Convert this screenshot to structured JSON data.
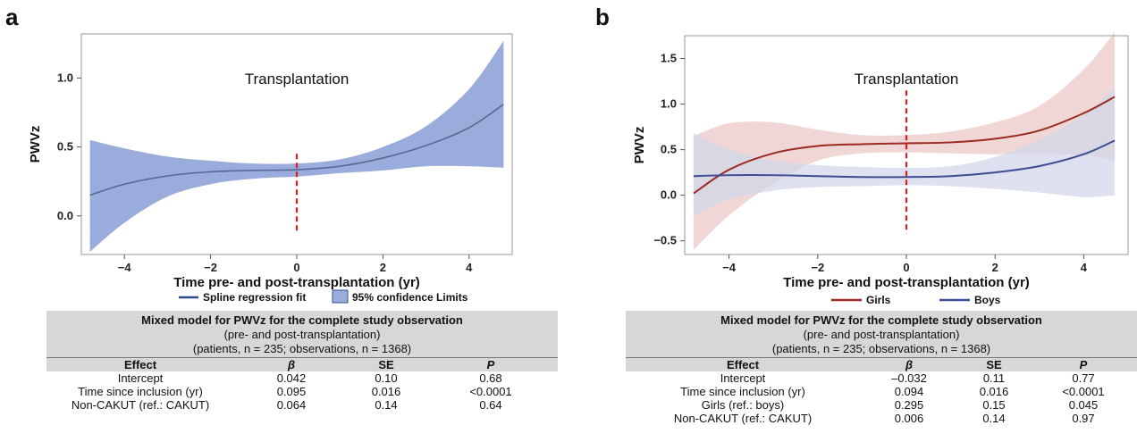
{
  "panels": [
    {
      "letter": "a",
      "chart_data": {
        "type": "line",
        "ylabel": "PWVz",
        "xlabel": "Time pre- and post-transplantation (yr)",
        "xlim": [
          -5.0,
          5.0
        ],
        "ylim": [
          -0.28,
          1.32
        ],
        "xticks": [
          "−4",
          "−2",
          "0",
          "2",
          "4"
        ],
        "xtick_values": [
          -4,
          -2,
          0,
          2,
          4
        ],
        "yticks": [
          "0.0",
          "0.5",
          "1.0"
        ],
        "ytick_values": [
          0.0,
          0.5,
          1.0
        ],
        "annotation": {
          "text": "Transplantation",
          "x": 0
        },
        "vline": {
          "x": 0,
          "y_range": [
            -0.12,
            0.45
          ],
          "color": "#e01e1e"
        },
        "series": [
          {
            "name": "Spline regression fit",
            "color": "#56698f",
            "band_color": "#9aacdc",
            "band_name": "95% confidence  Limits",
            "x": [
              -4.8,
              -4.0,
              -3.0,
              -2.0,
              -1.0,
              0.0,
              1.0,
              2.0,
              3.0,
              4.0,
              4.8
            ],
            "y": [
              0.15,
              0.23,
              0.29,
              0.32,
              0.33,
              0.335,
              0.36,
              0.42,
              0.51,
              0.64,
              0.81
            ],
            "lower": [
              -0.26,
              -0.05,
              0.14,
              0.23,
              0.27,
              0.285,
              0.31,
              0.33,
              0.36,
              0.36,
              0.35
            ],
            "upper": [
              0.55,
              0.49,
              0.43,
              0.4,
              0.38,
              0.38,
              0.41,
              0.5,
              0.65,
              0.92,
              1.27
            ]
          }
        ],
        "legend": [
          {
            "label": "Spline regression fit",
            "kind": "line",
            "color": "#2f4a8a"
          },
          {
            "label": "95% confidence  Limits",
            "kind": "box",
            "color": "#9aacdc"
          }
        ]
      },
      "table": {
        "title": "Mixed model for PWVz for the complete study observation",
        "subtitle": "(pre- and post-transplantation)",
        "counts": "(patients, n = 235; observations, n = 1368)",
        "headers": [
          "Effect",
          "β",
          "SE",
          "P"
        ],
        "rows": [
          [
            "Intercept",
            "0.042",
            "0.10",
            "0.68"
          ],
          [
            "Time since inclusion (yr)",
            "0.095",
            "0.016",
            "<0.0001"
          ],
          [
            "Non-CAKUT (ref.: CAKUT)",
            "0.064",
            "0.14",
            "0.64"
          ]
        ]
      }
    },
    {
      "letter": "b",
      "chart_data": {
        "type": "line",
        "ylabel": "PWVz",
        "xlabel": "Time pre- and post-transplantation (yr)",
        "xlim": [
          -5.0,
          5.0
        ],
        "ylim": [
          -0.65,
          1.75
        ],
        "xticks": [
          "−4",
          "−2",
          "0",
          "2",
          "4"
        ],
        "xtick_values": [
          -4,
          -2,
          0,
          2,
          4
        ],
        "yticks": [
          "−0.5",
          "0.0",
          "0.5",
          "1.0",
          "1.5"
        ],
        "ytick_values": [
          -0.5,
          0.0,
          0.5,
          1.0,
          1.5
        ],
        "annotation": {
          "text": "Transplantation",
          "x": 0
        },
        "vline": {
          "x": 0,
          "y_range": [
            -0.42,
            1.15
          ],
          "color": "#e01e1e"
        },
        "series": [
          {
            "name": "Girls",
            "color": "#9b2a22",
            "band_color": "#ebcac7",
            "x": [
              -4.8,
              -4.0,
              -3.0,
              -2.0,
              -1.0,
              0.0,
              1.0,
              2.0,
              3.0,
              4.0,
              4.7
            ],
            "y": [
              0.02,
              0.28,
              0.46,
              0.54,
              0.56,
              0.57,
              0.58,
              0.62,
              0.71,
              0.9,
              1.08
            ],
            "lower": [
              -0.6,
              -0.22,
              0.13,
              0.38,
              0.46,
              0.47,
              0.46,
              0.45,
              0.45,
              0.44,
              0.38
            ],
            "upper": [
              0.65,
              0.79,
              0.8,
              0.72,
              0.66,
              0.66,
              0.7,
              0.8,
              0.98,
              1.38,
              1.79
            ]
          },
          {
            "name": "Boys",
            "color": "#3b4c93",
            "band_color": "#d3d7ea",
            "x": [
              -4.8,
              -4.0,
              -3.0,
              -2.0,
              -1.0,
              0.0,
              1.0,
              2.0,
              3.0,
              4.0,
              4.7
            ],
            "y": [
              0.21,
              0.22,
              0.22,
              0.21,
              0.2,
              0.2,
              0.21,
              0.25,
              0.32,
              0.45,
              0.6
            ],
            "lower": [
              -0.22,
              -0.05,
              0.05,
              0.09,
              0.1,
              0.11,
              0.1,
              0.07,
              0.03,
              -0.02,
              0.0
            ],
            "upper": [
              0.68,
              0.5,
              0.38,
              0.33,
              0.31,
              0.3,
              0.32,
              0.42,
              0.61,
              0.88,
              1.18
            ]
          }
        ],
        "legend": [
          {
            "label": "Girls",
            "kind": "line",
            "color": "#9b2a22"
          },
          {
            "label": "Boys",
            "kind": "line",
            "color": "#3b4c93"
          }
        ]
      },
      "table": {
        "title": "Mixed model for PWVz  for the complete study observation",
        "subtitle": "(pre- and post-transplantation)",
        "counts": "(patients, n = 235; observations, n = 1368)",
        "headers": [
          "Effect",
          "β",
          "SE",
          "P"
        ],
        "rows": [
          [
            "Intercept",
            "–0.032",
            "0.11",
            "0.77"
          ],
          [
            "Time since inclusion (yr)",
            "0.094",
            "0.016",
            "<0.0001"
          ],
          [
            "Girls (ref.: boys)",
            "0.295",
            "0.15",
            "0.045"
          ],
          [
            "Non-CAKUT (ref.: CAKUT)",
            "0.006",
            "0.14",
            "0.97"
          ]
        ]
      }
    }
  ]
}
